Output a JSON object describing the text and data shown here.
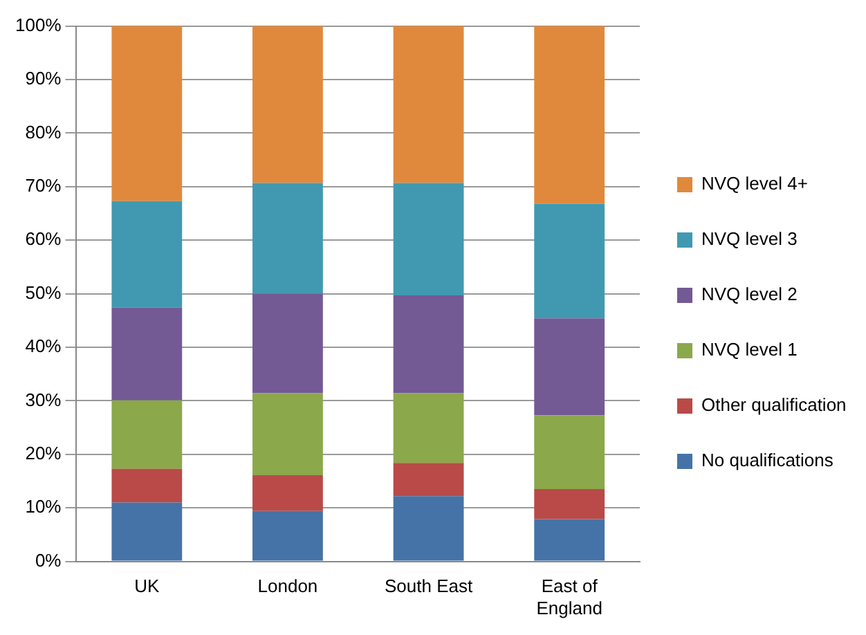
{
  "chart_data": {
    "type": "bar",
    "stacked": true,
    "categories": [
      "UK",
      "London",
      "South East",
      "East of England"
    ],
    "series": [
      {
        "name": "No qualifications",
        "color": "#4573a7",
        "values": [
          11.0,
          9.4,
          12.2,
          7.9
        ]
      },
      {
        "name": "Other qualification",
        "color": "#b94a48",
        "values": [
          6.3,
          6.7,
          6.2,
          5.6
        ]
      },
      {
        "name": "NVQ level 1",
        "color": "#8ba84a",
        "values": [
          12.8,
          15.3,
          13.0,
          13.8
        ]
      },
      {
        "name": "NVQ level 2",
        "color": "#735a95",
        "values": [
          17.3,
          18.6,
          18.3,
          18.1
        ]
      },
      {
        "name": "NVQ level 3",
        "color": "#4199b1",
        "values": [
          19.9,
          20.7,
          21.0,
          21.4
        ]
      },
      {
        "name": "NVQ level 4+",
        "color": "#e0893d",
        "values": [
          32.7,
          29.3,
          29.3,
          33.2
        ]
      }
    ],
    "ylim": [
      0,
      100
    ],
    "yticks": [
      {
        "value": 0,
        "label": "0%"
      },
      {
        "value": 10,
        "label": "10%"
      },
      {
        "value": 20,
        "label": "20%"
      },
      {
        "value": 30,
        "label": "30%"
      },
      {
        "value": 40,
        "label": "40%"
      },
      {
        "value": 50,
        "label": "50%"
      },
      {
        "value": 60,
        "label": "60%"
      },
      {
        "value": 70,
        "label": "70%"
      },
      {
        "value": 80,
        "label": "80%"
      },
      {
        "value": 90,
        "label": "90%"
      },
      {
        "value": 100,
        "label": "100%"
      }
    ],
    "grid": "y",
    "legend": "right"
  }
}
